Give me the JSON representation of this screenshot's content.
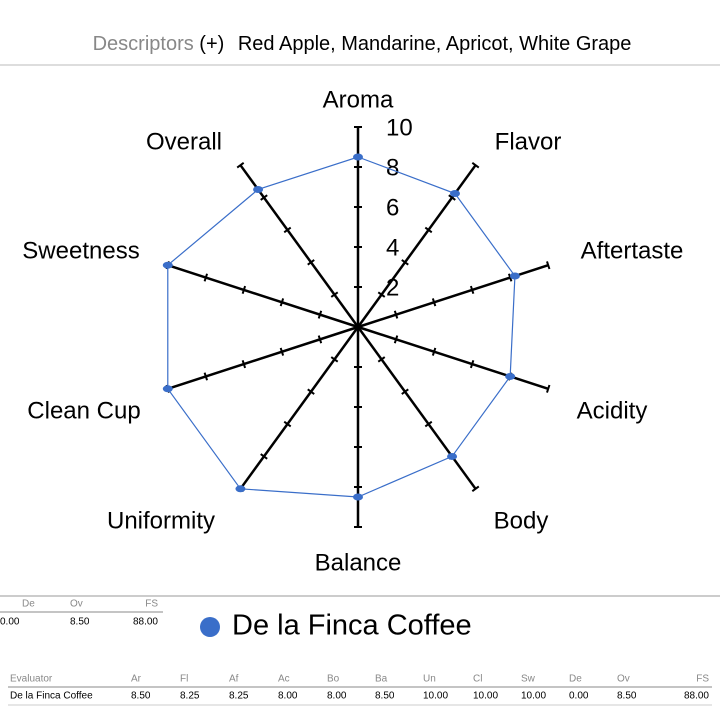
{
  "header": {
    "label": "Descriptors",
    "toggle": "(+)",
    "descriptors": "Red Apple, Mandarine, Apricot, White Grape"
  },
  "chart_data": {
    "type": "radar",
    "categories": [
      "Aroma",
      "Flavor",
      "Aftertaste",
      "Acidity",
      "Body",
      "Balance",
      "Uniformity",
      "Clean Cup",
      "Sweetness",
      "Overall"
    ],
    "series": [
      {
        "name": "De la Finca Coffee",
        "color": "#3a6ec9",
        "values": [
          8.5,
          8.25,
          8.25,
          8.0,
          8.0,
          8.5,
          10,
          10,
          10,
          8.5
        ]
      }
    ],
    "rlim": [
      0,
      10
    ],
    "rticks": [
      2,
      4,
      6,
      8,
      10
    ]
  },
  "summary_table": {
    "columns": [
      "De",
      "Ov",
      "FS"
    ],
    "rows": [
      [
        "0.00",
        "8.50",
        "88.00"
      ]
    ]
  },
  "table": {
    "columns": [
      "Evaluator",
      "Ar",
      "Fl",
      "Af",
      "Ac",
      "Bo",
      "Ba",
      "Un",
      "Cl",
      "Sw",
      "De",
      "Ov",
      "FS"
    ],
    "rows": [
      [
        "De la Finca Coffee",
        "8.50",
        "8.25",
        "8.25",
        "8.00",
        "8.00",
        "8.50",
        "10.00",
        "10.00",
        "10.00",
        "0.00",
        "8.50",
        "88.00"
      ]
    ]
  }
}
